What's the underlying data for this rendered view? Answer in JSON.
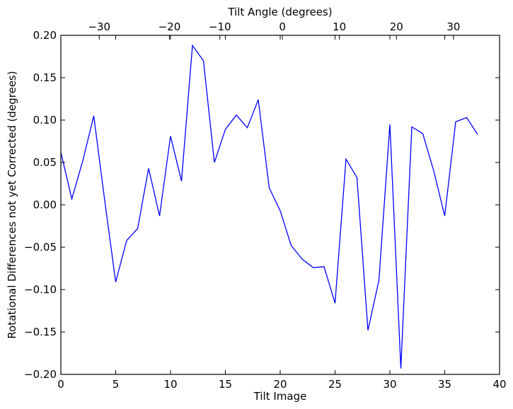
{
  "chart_data": {
    "type": "line",
    "xlabel": "Tilt Image",
    "ylabel": "Rotational Differences not yet Corrected (degrees)",
    "top_xlabel": "Tilt Angle (degrees)",
    "xlim": [
      0,
      40
    ],
    "ylim": [
      -0.2,
      0.2
    ],
    "x_ticks": [
      0,
      5,
      10,
      15,
      20,
      25,
      30,
      35,
      40
    ],
    "x_tick_labels": [
      "0",
      "5",
      "10",
      "15",
      "20",
      "25",
      "30",
      "35",
      "40"
    ],
    "y_ticks": [
      -0.2,
      -0.15,
      -0.1,
      -0.05,
      0.0,
      0.05,
      0.1,
      0.15,
      0.2
    ],
    "y_tick_labels": [
      "−0.20",
      "−0.15",
      "−0.10",
      "−0.05",
      "0.00",
      "0.05",
      "0.10",
      "0.15",
      "0.20"
    ],
    "top_ticks": [
      {
        "image": 3.5,
        "label": "−30"
      },
      {
        "image": 9.9,
        "label": "−20"
      },
      {
        "image": 14.5,
        "label": "−10"
      },
      {
        "image": 20.2,
        "label": "0"
      },
      {
        "image": 25.4,
        "label": "10"
      },
      {
        "image": 30.6,
        "label": "20"
      },
      {
        "image": 35.8,
        "label": "30"
      }
    ],
    "grid": false,
    "series": [
      {
        "color": "#0000ff",
        "x": [
          0,
          1,
          2,
          3,
          4,
          5,
          6,
          7,
          8,
          9,
          10,
          11,
          12,
          13,
          14,
          15,
          16,
          17,
          18,
          19,
          20,
          21,
          22,
          23,
          24,
          25,
          26,
          27,
          28,
          29,
          30,
          31,
          32,
          33,
          34,
          35,
          36,
          37,
          38
        ],
        "values": [
          0.062,
          0.007,
          0.052,
          0.105,
          0.005,
          -0.091,
          -0.042,
          -0.028,
          0.043,
          -0.013,
          0.081,
          0.028,
          0.188,
          0.17,
          0.05,
          0.089,
          0.106,
          0.091,
          0.124,
          0.02,
          -0.007,
          -0.048,
          -0.064,
          -0.074,
          -0.073,
          -0.116,
          0.054,
          0.032,
          -0.148,
          -0.089,
          0.095,
          -0.193,
          0.092,
          0.084,
          0.04,
          -0.013,
          0.098,
          0.103,
          0.083
        ]
      }
    ]
  }
}
